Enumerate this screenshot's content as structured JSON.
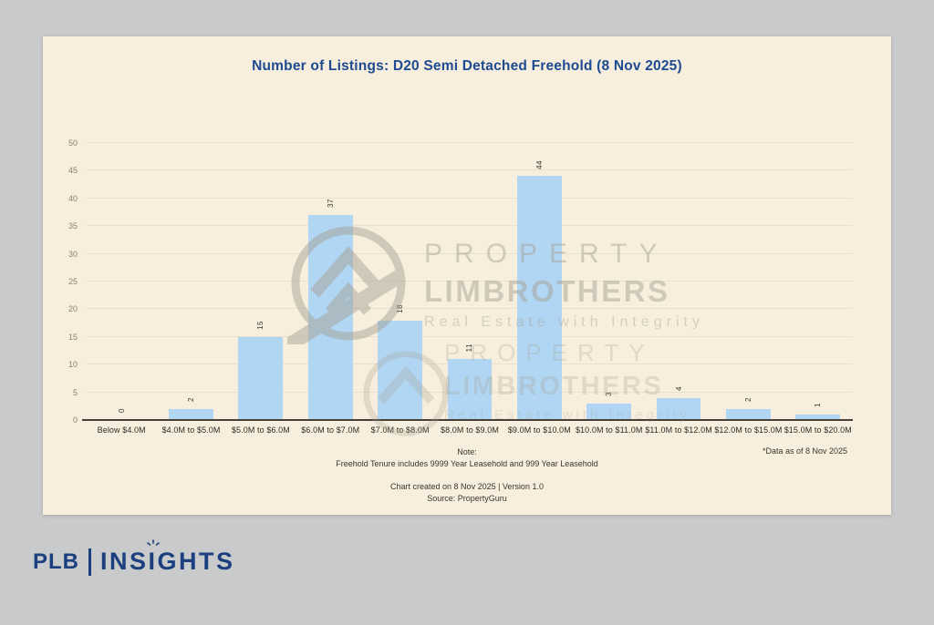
{
  "title": "Number of Listings: D20 Semi Detached Freehold (8 Nov 2025)",
  "chart_data": {
    "type": "bar",
    "title": "Number of Listings: D20 Semi Detached Freehold (8 Nov 2025)",
    "categories": [
      "Below $4.0M",
      "$4.0M to $5.0M",
      "$5.0M to $6.0M",
      "$6.0M to $7.0M",
      "$7.0M to $8.0M",
      "$8.0M to $9.0M",
      "$9.0M to $10.0M",
      "$10.0M to $11.0M",
      "$11.0M to $12.0M",
      "$12.0M to $15.0M",
      "$15.0M to $20.0M"
    ],
    "values": [
      0,
      2,
      15,
      37,
      18,
      11,
      44,
      3,
      4,
      2,
      1
    ],
    "xlabel": "",
    "ylabel": "",
    "ylim": [
      0,
      50
    ],
    "ytick_step": 5,
    "grid": true,
    "legend": false,
    "bar_color": "#b1d6f3",
    "value_labels_rotated": true
  },
  "colors": {
    "page_background": "#c9cacb",
    "card_background": "#f7eedd",
    "title_color": "#1d4a90",
    "bar_color": "#b1d6f3",
    "brand_navy": "#1c3f7f"
  },
  "watermark": {
    "line1": "PROPERTY",
    "line2": "LIMBROTHERS",
    "line3": "Real Estate with Integrity"
  },
  "notes": {
    "note_label": "Note:",
    "note_line": "Freehold Tenure includes 9999 Year Leasehold and 999 Year Leasehold",
    "created_line": "Chart created on 8 Nov 2025 | Version 1.0",
    "source_line": "Source: PropertyGuru",
    "data_as_of": "*Data as of 8 Nov 2025"
  },
  "footer": {
    "brand": "PLB",
    "product": "INSIGHTS"
  }
}
